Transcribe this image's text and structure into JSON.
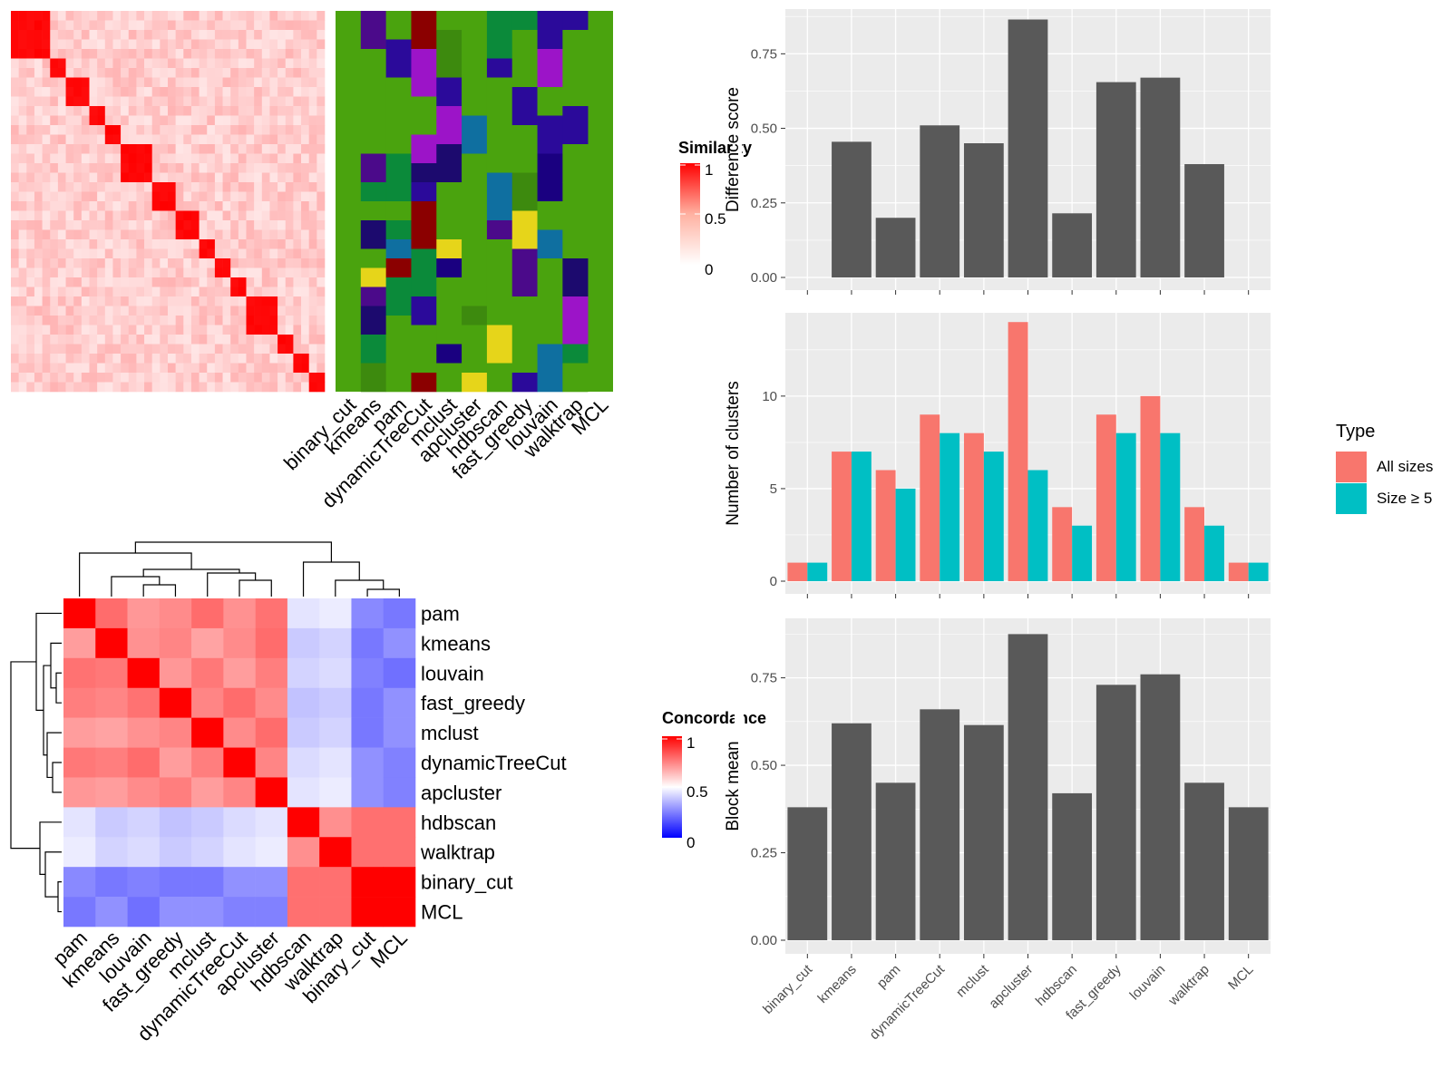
{
  "methods": [
    "binary_cut",
    "kmeans",
    "pam",
    "dynamicTreeCut",
    "mclust",
    "apcluster",
    "hdbscan",
    "fast_greedy",
    "louvain",
    "walktrap",
    "MCL"
  ],
  "colors": {
    "bar": "#595959",
    "panel_bg": "#ebebeb",
    "grid": "#ffffff",
    "all_sizes": "#f8766d",
    "size5": "#00bfc4",
    "cluster_bg": "#4aa30e",
    "sim_high": "#ff0000",
    "sim_low": "#ffffff",
    "conc_low": "#0000ff"
  },
  "heatmap_top": {
    "similarity_legend": {
      "title": "Similarity",
      "ticks": [
        "1",
        "0.5",
        "0"
      ]
    },
    "column_labels": [
      "binary_cut",
      "kmeans",
      "pam",
      "dynamicTreeCut",
      "mclust",
      "apcluster",
      "hdbscan",
      "fast_greedy",
      "louvain",
      "walktrap",
      "MCL"
    ]
  },
  "heatmap_bottom": {
    "legend": {
      "title": "Concordance",
      "ticks": [
        "1",
        "0.5",
        "0"
      ]
    },
    "order": [
      "pam",
      "kmeans",
      "louvain",
      "fast_greedy",
      "mclust",
      "dynamicTreeCut",
      "apcluster",
      "hdbscan",
      "walktrap",
      "binary_cut",
      "MCL"
    ]
  },
  "chart_data": [
    {
      "type": "bar",
      "categories": [
        "binary_cut",
        "kmeans",
        "pam",
        "dynamicTreeCut",
        "mclust",
        "apcluster",
        "hdbscan",
        "fast_greedy",
        "louvain",
        "walktrap",
        "MCL"
      ],
      "values": [
        0,
        0.455,
        0.2,
        0.51,
        0.45,
        0.865,
        0.215,
        0.655,
        0.67,
        0.38,
        0
      ],
      "ylabel": "Difference score",
      "xlabel": "",
      "ylim": [
        0,
        0.9
      ],
      "yticks": [
        "0.00",
        "0.25",
        "0.50",
        "0.75"
      ],
      "grid": true
    },
    {
      "type": "bar",
      "categories": [
        "binary_cut",
        "kmeans",
        "pam",
        "dynamicTreeCut",
        "mclust",
        "apcluster",
        "hdbscan",
        "fast_greedy",
        "louvain",
        "walktrap",
        "MCL"
      ],
      "series": [
        {
          "name": "All sizes",
          "values": [
            1,
            7,
            6,
            9,
            8,
            14,
            4,
            9,
            10,
            4,
            1
          ]
        },
        {
          "name": "Size ≥ 5",
          "values": [
            1,
            7,
            5,
            8,
            7,
            6,
            3,
            8,
            8,
            3,
            1
          ]
        }
      ],
      "ylabel": "Number of clusters",
      "xlabel": "",
      "ylim": [
        0,
        14.5
      ],
      "yticks": [
        "0",
        "5",
        "10"
      ],
      "legend": {
        "title": "Type",
        "position": "right"
      },
      "grid": true
    },
    {
      "type": "bar",
      "categories": [
        "binary_cut",
        "kmeans",
        "pam",
        "dynamicTreeCut",
        "mclust",
        "apcluster",
        "hdbscan",
        "fast_greedy",
        "louvain",
        "walktrap",
        "MCL"
      ],
      "values": [
        0.38,
        0.62,
        0.45,
        0.66,
        0.615,
        0.875,
        0.42,
        0.73,
        0.76,
        0.45,
        0.38
      ],
      "ylabel": "Block mean",
      "xlabel": "",
      "ylim": [
        0,
        0.92
      ],
      "yticks": [
        "0.00",
        "0.25",
        "0.50",
        "0.75"
      ],
      "grid": true
    }
  ]
}
